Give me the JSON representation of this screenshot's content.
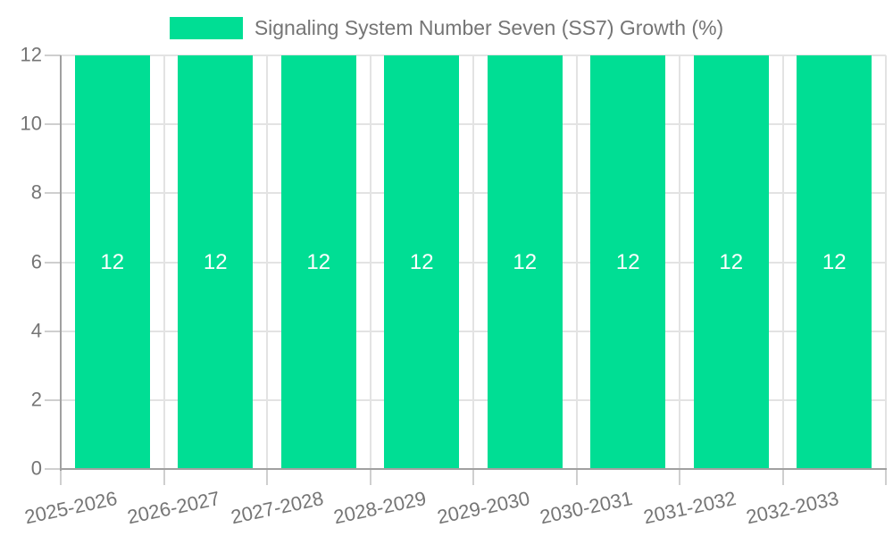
{
  "legend": {
    "label": "Signaling System Number Seven (SS7) Growth (%)"
  },
  "chart_data": {
    "type": "bar",
    "title": "Signaling System Number Seven (SS7) Growth (%)",
    "categories": [
      "2025-2026",
      "2026-2027",
      "2027-2028",
      "2028-2029",
      "2029-2030",
      "2030-2031",
      "2031-2032",
      "2032-2033"
    ],
    "series": [
      {
        "name": "Signaling System Number Seven (SS7) Growth (%)",
        "values": [
          12,
          12,
          12,
          12,
          12,
          12,
          12,
          12
        ]
      }
    ],
    "bar_value_labels": [
      "12",
      "12",
      "12",
      "12",
      "12",
      "12",
      "12",
      "12"
    ],
    "xlabel": "",
    "ylabel": "",
    "ylim": [
      0,
      12
    ],
    "y_ticks": [
      0,
      2,
      4,
      6,
      8,
      10,
      12
    ],
    "grid": true,
    "legend_position": "top"
  },
  "colors": {
    "bar": "#00DE94",
    "axis_text": "#757575",
    "bar_label_text": "#ffffff",
    "axis_line": "#a0a0a0",
    "gridline": "#e3e3e3",
    "tick": "#cfcfcf",
    "background": "#ffffff"
  }
}
